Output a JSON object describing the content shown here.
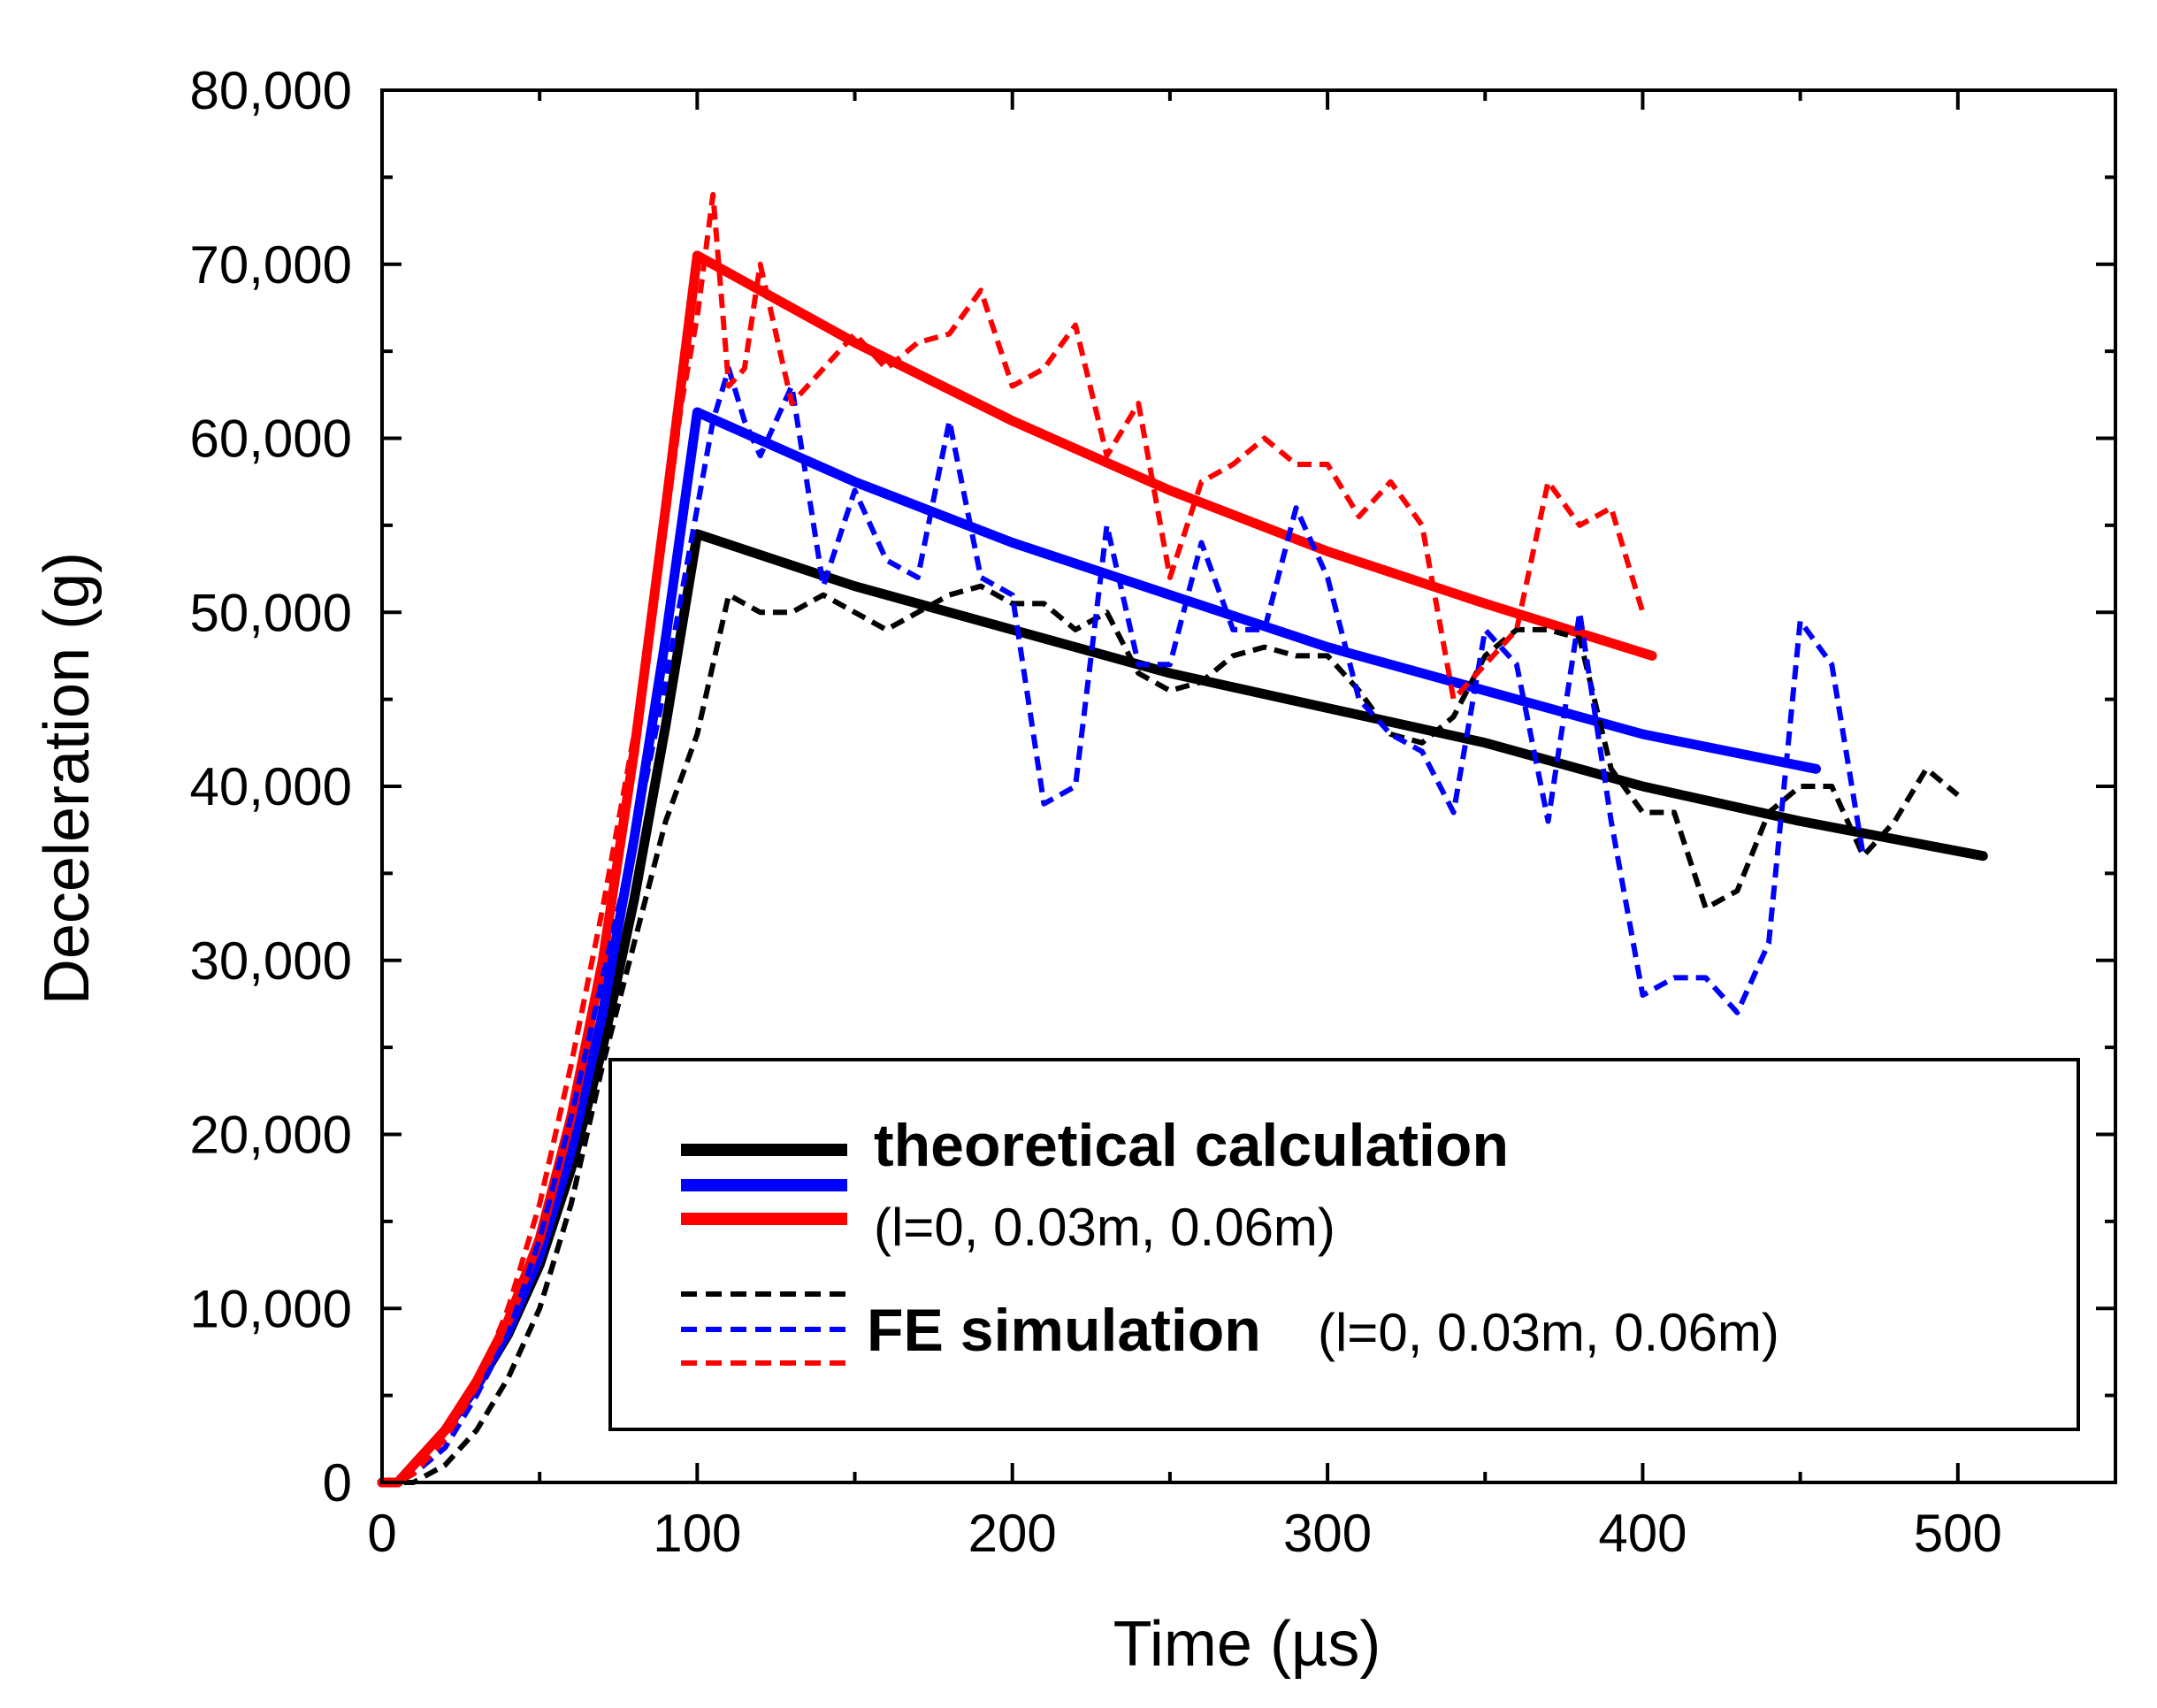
{
  "chart_data": {
    "type": "line",
    "xlabel": "Time (µs)",
    "ylabel": "Deceleration (g)",
    "xlim": [
      0,
      550
    ],
    "ylim": [
      0,
      80000
    ],
    "x_ticks": [
      "0",
      "100",
      "200",
      "300",
      "400",
      "500"
    ],
    "y_ticks": [
      "0",
      "10,000",
      "20,000",
      "30,000",
      "40,000",
      "50,000",
      "60,000",
      "70,000",
      "80,000"
    ],
    "grid": false,
    "legend_position": "bottom-center",
    "legend": {
      "theory_title": "theoretical calculation",
      "theory_params": "(l=0, 0.03m, 0.06m)",
      "fe_title": "FE simulation",
      "fe_params": "(l=0, 0.03m, 0.06m)"
    },
    "colors": {
      "black": "#000000",
      "blue": "#0000ff",
      "red": "#ff0000"
    },
    "series": [
      {
        "style": "solid",
        "color": "#000000",
        "x": [
          0,
          5,
          10,
          15,
          20,
          30,
          40,
          50,
          60,
          70,
          80,
          90,
          100,
          150,
          200,
          250,
          300,
          350,
          400,
          450,
          508
        ],
        "y": [
          0,
          0,
          1000,
          2000,
          3000,
          5500,
          8500,
          12500,
          18000,
          25000,
          33500,
          43500,
          54500,
          51500,
          49000,
          46500,
          44500,
          42500,
          40000,
          38000,
          36000
        ]
      },
      {
        "style": "solid",
        "color": "#0000ff",
        "x": [
          0,
          5,
          10,
          15,
          20,
          30,
          40,
          50,
          60,
          70,
          80,
          90,
          100,
          150,
          200,
          250,
          300,
          350,
          400,
          455
        ],
        "y": [
          0,
          0,
          1000,
          2000,
          3000,
          5500,
          8700,
          13000,
          19000,
          27000,
          37000,
          48500,
          61500,
          57500,
          54000,
          51000,
          48000,
          45500,
          43000,
          41000
        ]
      },
      {
        "style": "solid",
        "color": "#ff0000",
        "x": [
          0,
          5,
          10,
          15,
          20,
          30,
          40,
          50,
          60,
          70,
          80,
          90,
          100,
          150,
          200,
          250,
          300,
          350,
          403
        ],
        "y": [
          0,
          0,
          1000,
          2000,
          3000,
          5800,
          9300,
          14000,
          21000,
          30000,
          42000,
          56000,
          70500,
          65500,
          61000,
          57000,
          53500,
          50500,
          47500
        ]
      },
      {
        "style": "dashed",
        "color": "#000000",
        "x": [
          0,
          5,
          10,
          20,
          30,
          40,
          50,
          60,
          70,
          80,
          90,
          100,
          105,
          110,
          120,
          130,
          140,
          150,
          160,
          170,
          180,
          190,
          200,
          210,
          220,
          230,
          240,
          250,
          260,
          270,
          280,
          290,
          300,
          310,
          320,
          330,
          340,
          350,
          360,
          370,
          380,
          390,
          400,
          410,
          420,
          430,
          440,
          450,
          460,
          470,
          480,
          490,
          500
        ],
        "y": [
          0,
          0,
          0,
          1000,
          3000,
          6000,
          10000,
          16000,
          24000,
          31000,
          38000,
          43000,
          47000,
          51000,
          50000,
          50000,
          51000,
          50000,
          49000,
          50000,
          51000,
          51500,
          50500,
          50500,
          49000,
          50000,
          46500,
          45500,
          46000,
          47500,
          48000,
          47500,
          47500,
          45500,
          43000,
          42500,
          44000,
          47500,
          49000,
          49000,
          48500,
          41000,
          38500,
          38500,
          33000,
          34000,
          38500,
          40000,
          40000,
          36000,
          38000,
          41000,
          39500
        ]
      },
      {
        "style": "dashed",
        "color": "#0000ff",
        "x": [
          0,
          5,
          10,
          20,
          30,
          40,
          50,
          60,
          70,
          80,
          90,
          95,
          100,
          105,
          110,
          115,
          120,
          130,
          140,
          150,
          160,
          170,
          180,
          190,
          200,
          210,
          220,
          230,
          240,
          250,
          260,
          270,
          280,
          290,
          300,
          310,
          320,
          330,
          340,
          350,
          360,
          370,
          380,
          390,
          400,
          410,
          420,
          430,
          440,
          450,
          460,
          470
        ],
        "y": [
          0,
          0,
          500,
          2000,
          5000,
          8500,
          14000,
          21000,
          29000,
          37000,
          46000,
          51000,
          56000,
          61000,
          64000,
          61000,
          59000,
          63000,
          51500,
          57000,
          53000,
          52000,
          61000,
          52000,
          51000,
          39000,
          40000,
          55000,
          47000,
          47000,
          54000,
          49000,
          49000,
          56000,
          52000,
          45000,
          43000,
          42000,
          38500,
          49000,
          47000,
          38000,
          50000,
          38000,
          28000,
          29000,
          29000,
          27000,
          31000,
          49500,
          47000,
          36000
        ]
      },
      {
        "style": "dashed",
        "color": "#ff0000",
        "x": [
          0,
          5,
          10,
          20,
          30,
          40,
          50,
          60,
          70,
          80,
          90,
          95,
          100,
          105,
          110,
          115,
          120,
          130,
          140,
          150,
          160,
          170,
          180,
          190,
          200,
          210,
          220,
          230,
          240,
          250,
          260,
          270,
          280,
          290,
          300,
          310,
          320,
          330,
          340,
          350,
          360,
          370,
          380,
          390,
          400
        ],
        "y": [
          0,
          0,
          500,
          2500,
          5500,
          10000,
          16000,
          24000,
          33000,
          43000,
          55000,
          62000,
          67000,
          74000,
          63000,
          64000,
          70000,
          62000,
          64000,
          66000,
          64000,
          65500,
          66000,
          68500,
          63000,
          64000,
          66500,
          59000,
          62000,
          52000,
          57500,
          58500,
          60000,
          58500,
          58500,
          55500,
          57500,
          55000,
          45000,
          47000,
          49000,
          57500,
          55000,
          56000,
          50000
        ]
      }
    ]
  }
}
